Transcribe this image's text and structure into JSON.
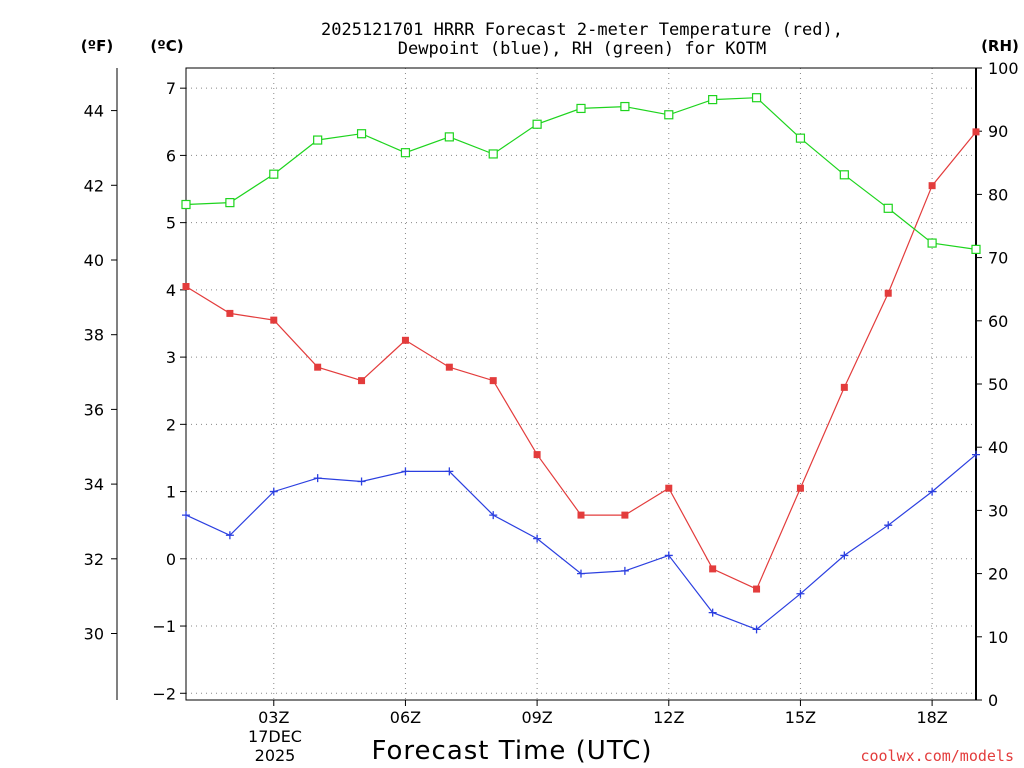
{
  "chart_data": {
    "type": "line",
    "title": [
      "2025121701 HRRR Forecast 2-meter Temperature (red),",
      "Dewpoint (blue), RH (green) for KOTM"
    ],
    "xlabel": "Forecast Time (UTC)",
    "date_label": [
      "17DEC",
      "2025"
    ],
    "credit": "coolwx.com/models",
    "colors": {
      "temperature": "#e33c3c",
      "dewpoint": "#2b3fe0",
      "rh": "#1ed41e",
      "credit": "#e33c3c"
    },
    "x_hours": [
      1,
      2,
      3,
      4,
      5,
      6,
      7,
      8,
      9,
      10,
      11,
      12,
      13,
      14,
      15,
      16,
      17,
      18,
      19
    ],
    "x_range": [
      1,
      19
    ],
    "x_ticks": [
      {
        "hour": 3,
        "label": "03Z"
      },
      {
        "hour": 6,
        "label": "06Z"
      },
      {
        "hour": 9,
        "label": "09Z"
      },
      {
        "hour": 12,
        "label": "12Z"
      },
      {
        "hour": 15,
        "label": "15Z"
      },
      {
        "hour": 18,
        "label": "18Z"
      }
    ],
    "axes": {
      "celsius": {
        "label": "(ºC)",
        "range": [
          -2.1,
          7.3
        ],
        "ticks": [
          "-2",
          "-1",
          "0",
          "1",
          "2",
          "3",
          "4",
          "5",
          "6",
          "7"
        ]
      },
      "fahrenheit": {
        "label": "(ºF)",
        "ticks": [
          "30",
          "32",
          "34",
          "36",
          "38",
          "40",
          "42",
          "44"
        ]
      },
      "rh": {
        "label": "(RH)",
        "range": [
          0,
          100
        ],
        "ticks": [
          "0",
          "10",
          "20",
          "30",
          "40",
          "50",
          "60",
          "70",
          "80",
          "90",
          "100"
        ]
      }
    },
    "series": [
      {
        "name": "Temperature",
        "unit": "C",
        "marker": "square-filled",
        "values": [
          4.05,
          3.65,
          3.55,
          2.85,
          2.65,
          3.25,
          2.85,
          2.65,
          1.55,
          0.65,
          0.65,
          1.05,
          -0.15,
          -0.45,
          1.05,
          2.55,
          3.95,
          5.55,
          6.35
        ]
      },
      {
        "name": "Dewpoint",
        "unit": "C",
        "marker": "plus",
        "values": [
          0.65,
          0.35,
          1.0,
          1.2,
          1.15,
          1.3,
          1.3,
          0.65,
          0.3,
          -0.22,
          -0.18,
          0.05,
          -0.8,
          -1.05,
          -0.52,
          0.05,
          0.5,
          1.0,
          1.55
        ]
      },
      {
        "name": "RH",
        "unit": "%",
        "marker": "square-open",
        "values": [
          78.4,
          78.7,
          83.2,
          88.6,
          89.6,
          86.6,
          89.1,
          86.4,
          91.1,
          93.6,
          93.9,
          92.6,
          95.0,
          95.3,
          88.9,
          83.1,
          77.8,
          72.3,
          71.3
        ]
      }
    ]
  }
}
